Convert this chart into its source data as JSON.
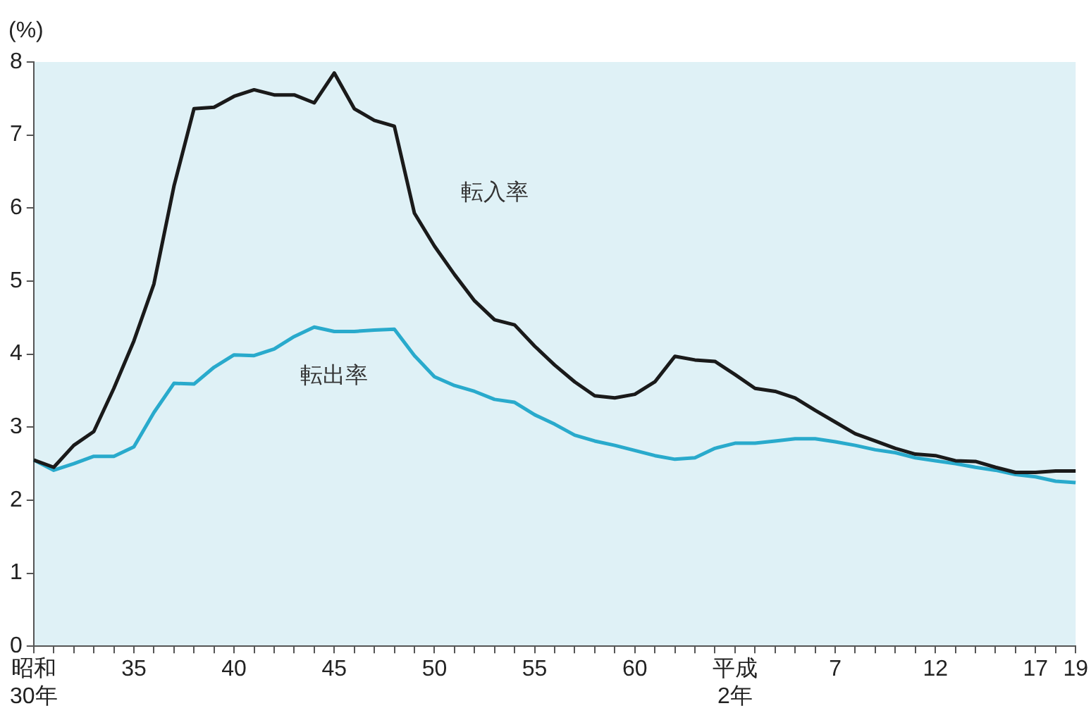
{
  "chart_data": {
    "type": "line",
    "ylabel": "(%)",
    "categories": [
      "昭和\n30年",
      null,
      null,
      null,
      null,
      "35",
      null,
      null,
      null,
      null,
      "40",
      null,
      null,
      null,
      null,
      "45",
      null,
      null,
      null,
      null,
      "50",
      null,
      null,
      null,
      null,
      "55",
      null,
      null,
      null,
      null,
      "60",
      null,
      null,
      null,
      null,
      "平成\n2年",
      null,
      null,
      null,
      null,
      "7",
      null,
      null,
      null,
      null,
      "12",
      null,
      null,
      null,
      null,
      "17",
      null,
      "19"
    ],
    "series": [
      {
        "name": "転入率",
        "color": "#1a1a1a",
        "values": [
          2.55,
          2.45,
          2.75,
          2.94,
          3.53,
          4.18,
          4.96,
          6.3,
          7.36,
          7.38,
          7.53,
          7.62,
          7.55,
          7.55,
          7.44,
          7.85,
          7.36,
          7.2,
          7.12,
          5.93,
          5.48,
          5.09,
          4.73,
          4.47,
          4.4,
          4.11,
          3.85,
          3.62,
          3.43,
          3.4,
          3.45,
          3.62,
          3.97,
          3.92,
          3.9,
          3.72,
          3.53,
          3.49,
          3.4,
          3.23,
          3.07,
          2.91,
          2.81,
          2.71,
          2.63,
          2.61,
          2.54,
          2.53,
          2.45,
          2.38,
          2.38,
          2.4,
          2.4
        ]
      },
      {
        "name": "転出率",
        "color": "#29aacc",
        "values": [
          2.55,
          2.41,
          2.5,
          2.6,
          2.6,
          2.73,
          3.2,
          3.6,
          3.59,
          3.82,
          3.99,
          3.98,
          4.07,
          4.24,
          4.37,
          4.31,
          4.31,
          4.33,
          4.34,
          3.98,
          3.69,
          3.57,
          3.49,
          3.38,
          3.34,
          3.17,
          3.04,
          2.89,
          2.81,
          2.75,
          2.68,
          2.61,
          2.56,
          2.58,
          2.71,
          2.78,
          2.78,
          2.81,
          2.84,
          2.84,
          2.8,
          2.75,
          2.69,
          2.65,
          2.58,
          2.54,
          2.5,
          2.45,
          2.41,
          2.35,
          2.32,
          2.26,
          2.24
        ]
      }
    ],
    "ylim": [
      0,
      8
    ],
    "yticks": [
      0,
      1,
      2,
      3,
      4,
      5,
      6,
      7,
      8
    ],
    "grid": false,
    "legend": false,
    "marker": "none",
    "line_style": "solid"
  }
}
